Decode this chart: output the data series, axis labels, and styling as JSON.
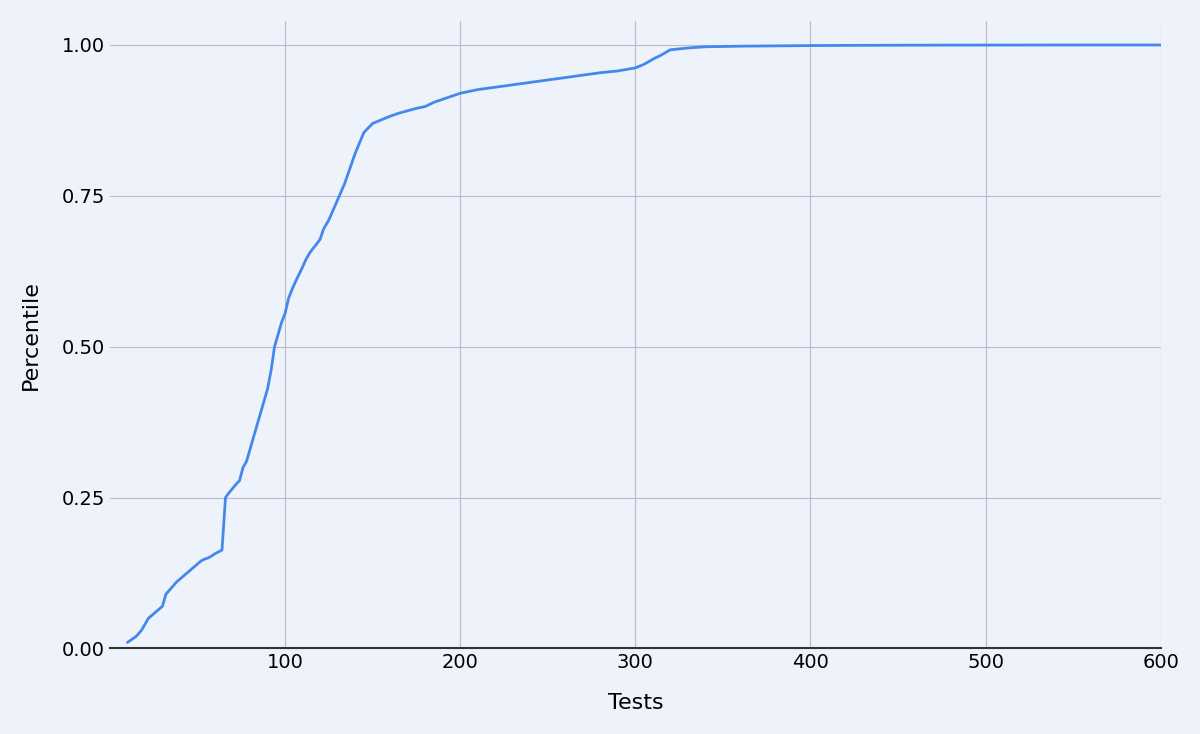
{
  "title": "",
  "xlabel": "Tests",
  "ylabel": "Percentile",
  "xlim": [
    0,
    600
  ],
  "ylim": [
    0.0,
    1.04
  ],
  "xticks": [
    100,
    200,
    300,
    400,
    500,
    600
  ],
  "yticks": [
    0.0,
    0.25,
    0.5,
    0.75,
    1.0
  ],
  "line_color": "#4488EE",
  "line_width": 2.0,
  "bg_color": "#EEF2FA",
  "grid_color": "#BBBBCC",
  "axis_color": "#333333",
  "label_fontsize": 16,
  "tick_fontsize": 14,
  "x_data": [
    10,
    15,
    18,
    20,
    22,
    24,
    26,
    28,
    30,
    32,
    35,
    38,
    40,
    42,
    44,
    46,
    48,
    50,
    52,
    54,
    56,
    58,
    60,
    62,
    64,
    66,
    68,
    70,
    72,
    74,
    76,
    78,
    80,
    82,
    84,
    86,
    88,
    90,
    92,
    94,
    96,
    98,
    100,
    102,
    104,
    106,
    108,
    110,
    112,
    114,
    116,
    118,
    120,
    122,
    125,
    128,
    131,
    134,
    137,
    140,
    145,
    150,
    155,
    160,
    165,
    170,
    175,
    180,
    185,
    190,
    195,
    200,
    210,
    220,
    230,
    240,
    250,
    260,
    270,
    280,
    290,
    300,
    305,
    308,
    311,
    314,
    317,
    320,
    330,
    340,
    360,
    380,
    400,
    420,
    450,
    480,
    520,
    560,
    600
  ],
  "y_data": [
    0.01,
    0.02,
    0.03,
    0.04,
    0.05,
    0.055,
    0.06,
    0.065,
    0.07,
    0.09,
    0.1,
    0.11,
    0.115,
    0.12,
    0.125,
    0.13,
    0.135,
    0.14,
    0.145,
    0.148,
    0.15,
    0.153,
    0.157,
    0.16,
    0.163,
    0.25,
    0.258,
    0.265,
    0.272,
    0.278,
    0.3,
    0.31,
    0.33,
    0.35,
    0.37,
    0.39,
    0.41,
    0.43,
    0.46,
    0.5,
    0.52,
    0.54,
    0.555,
    0.58,
    0.595,
    0.608,
    0.62,
    0.632,
    0.645,
    0.655,
    0.663,
    0.67,
    0.678,
    0.695,
    0.71,
    0.73,
    0.75,
    0.77,
    0.795,
    0.82,
    0.855,
    0.87,
    0.876,
    0.882,
    0.887,
    0.891,
    0.895,
    0.898,
    0.905,
    0.91,
    0.915,
    0.92,
    0.926,
    0.93,
    0.934,
    0.938,
    0.942,
    0.946,
    0.95,
    0.954,
    0.957,
    0.962,
    0.968,
    0.973,
    0.978,
    0.982,
    0.987,
    0.992,
    0.995,
    0.997,
    0.998,
    0.9985,
    0.999,
    0.9993,
    0.9996,
    0.9998,
    0.9999,
    1.0,
    1.0
  ]
}
